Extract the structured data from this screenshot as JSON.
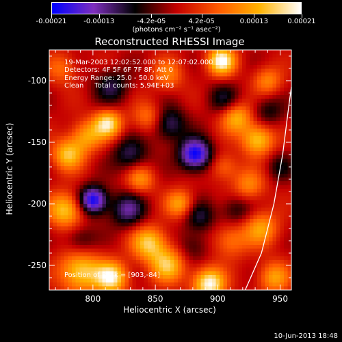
{
  "colorbar": {
    "tick_labels": [
      "-0.00021",
      "-0.00013",
      "-4.2e-05",
      "4.2e-05",
      "0.00013",
      "0.00021"
    ],
    "tick_values": [
      -0.00021,
      -0.00013,
      -4.2e-05,
      4.2e-05,
      0.00013,
      0.00021
    ],
    "units": "(photons cm⁻² s⁻¹ asec⁻²)",
    "range": [
      -0.00021,
      0.00021
    ],
    "colors": [
      "#0000ff",
      "#7f2fbf",
      "#000000",
      "#c40000",
      "#ff5a00",
      "#ffb300",
      "#ffffff"
    ]
  },
  "annotations": {
    "line1": "19-Mar-2003 12:02:52.000 to 12:07:02.000",
    "line2": "Detectors: 4F 5F 6F 7F 8F, Att 0",
    "line3": "Energy Range: 25.0 - 50.0 keV",
    "line4": "Clean     Total counts: 5.94E+03",
    "peak": "Position of Peak = [903,-84]"
  },
  "footer": "10-Jun-2013 18:48",
  "chart_data": {
    "type": "heatmap",
    "title": "Reconstructed RHESSI Image",
    "xlabel": "Heliocentric X (arcsec)",
    "ylabel": "Heliocentric Y (arcsec)",
    "xlim": [
      765,
      959
    ],
    "ylim": [
      -270,
      -75
    ],
    "xticks": [
      800,
      850,
      900,
      950
    ],
    "yticks": [
      -100,
      -150,
      -200,
      -250
    ],
    "limb_curve": [
      [
        922,
        -270
      ],
      [
        935,
        -240
      ],
      [
        945,
        -200
      ],
      [
        952,
        -160
      ],
      [
        957,
        -120
      ],
      [
        959,
        -105
      ]
    ],
    "sources": [
      {
        "x": 903,
        "y": -84,
        "value": 0.00021,
        "sigma": 8
      },
      {
        "x": 893,
        "y": -265,
        "value": 0.00021,
        "sigma": 9
      },
      {
        "x": 790,
        "y": -255,
        "value": 0.00017,
        "sigma": 12
      },
      {
        "x": 815,
        "y": -260,
        "value": 0.00019,
        "sigma": 9
      },
      {
        "x": 845,
        "y": -232,
        "value": 0.00016,
        "sigma": 10
      },
      {
        "x": 860,
        "y": -250,
        "value": 0.00015,
        "sigma": 10
      },
      {
        "x": 935,
        "y": -220,
        "value": 0.00012,
        "sigma": 10
      },
      {
        "x": 945,
        "y": -260,
        "value": 0.00012,
        "sigma": 9
      },
      {
        "x": 910,
        "y": -230,
        "value": 9e-05,
        "sigma": 10
      },
      {
        "x": 925,
        "y": -185,
        "value": 0.0001,
        "sigma": 9
      },
      {
        "x": 915,
        "y": -130,
        "value": 0.00014,
        "sigma": 9
      },
      {
        "x": 932,
        "y": -148,
        "value": 0.00016,
        "sigma": 9
      },
      {
        "x": 940,
        "y": -100,
        "value": 0.0001,
        "sigma": 8
      },
      {
        "x": 812,
        "y": -135,
        "value": 0.00018,
        "sigma": 8
      },
      {
        "x": 795,
        "y": -145,
        "value": 0.00012,
        "sigma": 9
      },
      {
        "x": 780,
        "y": -160,
        "value": 0.00015,
        "sigma": 9
      },
      {
        "x": 778,
        "y": -205,
        "value": 0.00016,
        "sigma": 10
      },
      {
        "x": 845,
        "y": -130,
        "value": 0.0001,
        "sigma": 9
      },
      {
        "x": 860,
        "y": -95,
        "value": 9e-05,
        "sigma": 9
      },
      {
        "x": 775,
        "y": -90,
        "value": 8e-05,
        "sigma": 9
      },
      {
        "x": 838,
        "y": -180,
        "value": 0.00011,
        "sigma": 8
      },
      {
        "x": 870,
        "y": -200,
        "value": 0.00013,
        "sigma": 8
      },
      {
        "x": 905,
        "y": -170,
        "value": 8e-05,
        "sigma": 8
      },
      {
        "x": 882,
        "y": -160,
        "value": -0.00021,
        "sigma": 9
      },
      {
        "x": 800,
        "y": -197,
        "value": -0.00021,
        "sigma": 8
      },
      {
        "x": 828,
        "y": -205,
        "value": -0.00012,
        "sigma": 10
      },
      {
        "x": 830,
        "y": -160,
        "value": -0.0001,
        "sigma": 10
      },
      {
        "x": 860,
        "y": -135,
        "value": -0.00012,
        "sigma": 10
      },
      {
        "x": 815,
        "y": -105,
        "value": -9e-05,
        "sigma": 10
      },
      {
        "x": 885,
        "y": -210,
        "value": -9e-05,
        "sigma": 9
      },
      {
        "x": 915,
        "y": -205,
        "value": -7e-05,
        "sigma": 9
      },
      {
        "x": 905,
        "y": -115,
        "value": -8e-05,
        "sigma": 9
      },
      {
        "x": 940,
        "y": -125,
        "value": -7e-05,
        "sigma": 9
      },
      {
        "x": 880,
        "y": -235,
        "value": -6e-05,
        "sigma": 9
      },
      {
        "x": 790,
        "y": -230,
        "value": -7e-05,
        "sigma": 9
      },
      {
        "x": 950,
        "y": -170,
        "value": -6e-05,
        "sigma": 8
      }
    ]
  }
}
